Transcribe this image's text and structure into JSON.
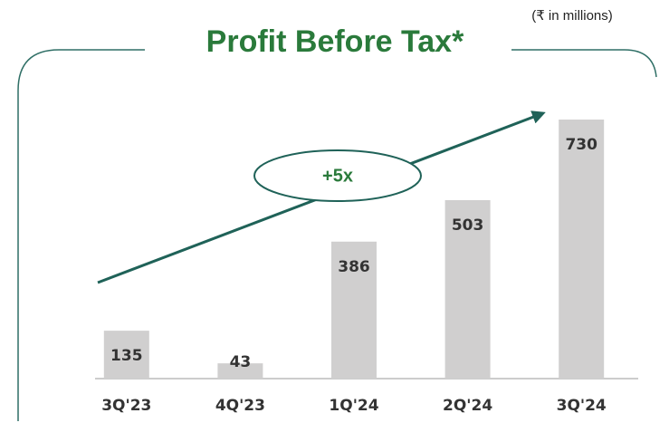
{
  "chart_data": {
    "type": "bar",
    "title": "Profit Before Tax*",
    "subtitle": "(₹ in millions)",
    "categories": [
      "3Q'23",
      "4Q'23",
      "1Q'24",
      "2Q'24",
      "3Q'24"
    ],
    "values": [
      135,
      43,
      386,
      503,
      730
    ],
    "color": "#d0cfcf",
    "annotations": [
      "+5x"
    ]
  }
}
